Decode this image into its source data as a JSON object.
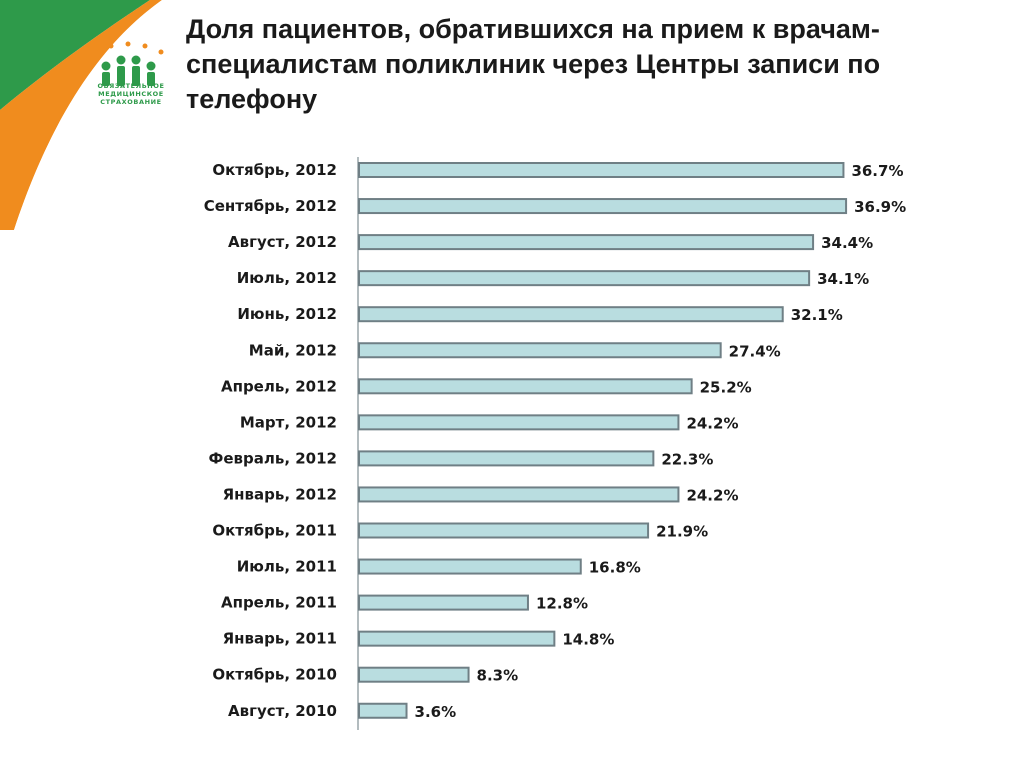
{
  "logo": {
    "text_lines": [
      "ОБЯЗАТЕЛЬНОЕ",
      "МЕДИЦИНСКОЕ",
      "СТРАХОВАНИЕ"
    ],
    "colors": {
      "green": "#2e9a4a",
      "orange": "#f08c1e"
    }
  },
  "chart_data": {
    "type": "bar",
    "orientation": "horizontal",
    "title": "Доля пациентов, обратившихся на прием к врачам-специалистам поликлиник через Центры записи по телефону",
    "categories": [
      "Октябрь, 2012",
      "Сентябрь, 2012",
      "Август, 2012",
      "Июль, 2012",
      "Июнь, 2012",
      "Май, 2012",
      "Апрель, 2012",
      "Март, 2012",
      "Февраль, 2012",
      "Январь, 2012",
      "Октябрь, 2011",
      "Июль, 2011",
      "Апрель, 2011",
      "Январь, 2011",
      "Октябрь, 2010",
      "Август, 2010"
    ],
    "values": [
      36.7,
      36.9,
      34.4,
      34.1,
      32.1,
      27.4,
      25.2,
      24.2,
      22.3,
      24.2,
      21.9,
      16.8,
      12.8,
      14.8,
      8.3,
      3.6
    ],
    "value_labels": [
      "36.7%",
      "36.9%",
      "34.4%",
      "34.1%",
      "32.1%",
      "27.4%",
      "25.2%",
      "24.2%",
      "22.3%",
      "24.2%",
      "21.9%",
      "16.8%",
      "12.8%",
      "14.8%",
      "8.3%",
      "3.6%"
    ],
    "xlim": [
      0,
      40
    ],
    "grid": false,
    "legend": "none",
    "bar_color": "#b9dde0",
    "bar_edge_color": "#6f7f85"
  }
}
